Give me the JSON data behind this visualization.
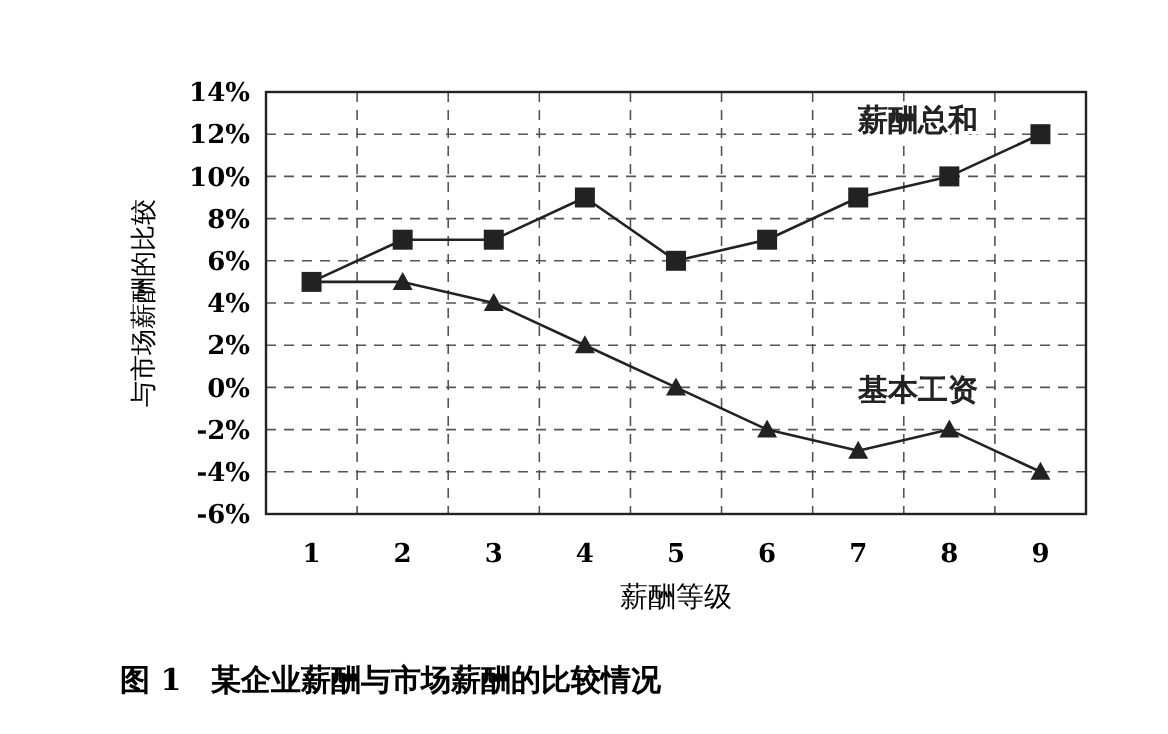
{
  "chart_data": {
    "type": "line",
    "title": "图 1　某企业薪酬与市场薪酬的比较情况",
    "xlabel": "薪酬等级",
    "ylabel": "与市场薪酬的比较",
    "categories": [
      "1",
      "2",
      "3",
      "4",
      "5",
      "6",
      "7",
      "8",
      "9"
    ],
    "series": [
      {
        "name": "薪酬总和",
        "color": "#222222",
        "marker": "square",
        "values": [
          5,
          7,
          7,
          9,
          6,
          7,
          9,
          10,
          12
        ]
      },
      {
        "name": "基本工资",
        "color": "#222222",
        "marker": "triangle",
        "values": [
          5,
          5,
          4,
          2,
          0,
          -2,
          -3,
          -2,
          -4
        ]
      }
    ],
    "ylim": [
      -6,
      14
    ],
    "yticks": [
      {
        "value": -6,
        "label": "-6%"
      },
      {
        "value": -4,
        "label": "-4%"
      },
      {
        "value": -2,
        "label": "-2%"
      },
      {
        "value": 0,
        "label": "0%"
      },
      {
        "value": 2,
        "label": "2%"
      },
      {
        "value": 4,
        "label": "4%"
      },
      {
        "value": 6,
        "label": "6%"
      },
      {
        "value": 8,
        "label": "8%"
      },
      {
        "value": 10,
        "label": "10%"
      },
      {
        "value": 12,
        "label": "12%"
      },
      {
        "value": 14,
        "label": "14%"
      }
    ],
    "grid": true,
    "line_style": "solid"
  }
}
